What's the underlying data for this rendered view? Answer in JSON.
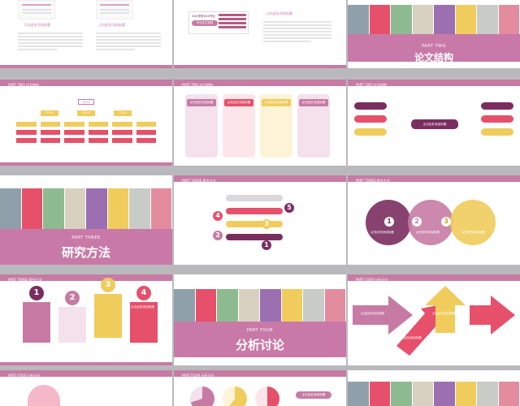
{
  "colors": {
    "pink": "#c77ba4",
    "purple": "#7a2e5f",
    "yellow": "#f0cc5c",
    "red": "#e6506a",
    "light_pink": "#f5e1ec",
    "grey": "#b9b9bd"
  },
  "slides": {
    "s1": {
      "label_left": "点击此处添加标题",
      "label_right": "点击此处添加标题"
    },
    "s2": {
      "label_title": "点击此处添加标题",
      "book_caption": "XXX学院XXX专业",
      "book_btn": "毕业论文答辩"
    },
    "s3": {
      "part": "PART TWO",
      "title": "论文结构"
    },
    "s4": {
      "header": "PART TWO  论文结构",
      "top_node": "TITLE",
      "row2": [
        "TITLE",
        "TITLE",
        "TITLE"
      ]
    },
    "s5": {
      "header": "PART TWO  论文结构",
      "cards": [
        "点击此处添加标题",
        "点击此处添加标题",
        "点击此处添加标题",
        "点击此处添加标题"
      ]
    },
    "s6": {
      "header": "PART TWO  论文结构",
      "center": "点击此处添加标题"
    },
    "s7": {
      "part": "PART THREE",
      "title": "研究方法"
    },
    "s8": {
      "header": "PART THREE  研究方法",
      "nums": [
        "5",
        "4",
        "3",
        "2",
        "1"
      ]
    },
    "s9": {
      "header": "PART THREE  研究方法",
      "nums": [
        "1",
        "2",
        "3"
      ],
      "labels": [
        "点击此处添加标题",
        "点击此处添加标题",
        "点击此处添加标题"
      ]
    },
    "s10": {
      "header": "PART THREE  研究方法",
      "nums": [
        "1",
        "2",
        "3",
        "4"
      ],
      "label": "点击此处添加标题"
    },
    "s11": {
      "part": "PART FOUR",
      "title": "分析讨论"
    },
    "s12": {
      "header": "PART FOUR  分析讨论",
      "labels": [
        "点击此处添加标题",
        "点击此处添加标题",
        "点击此处添加标题"
      ]
    },
    "s13": {
      "header": "PART FOUR  分析讨论"
    },
    "s14": {
      "header": "PART FOUR  分析讨论",
      "label": "点击此处添加标题"
    }
  }
}
